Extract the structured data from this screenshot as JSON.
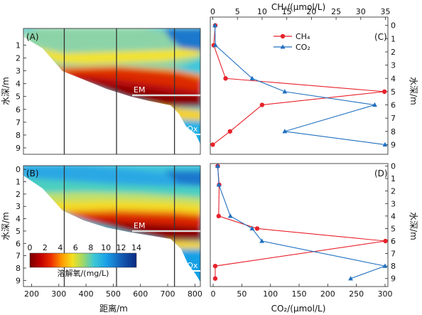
{
  "chart_data": [
    {
      "panel": "(A)",
      "type": "heatmap",
      "xlabel": "",
      "ylabel": "水深/m",
      "xlim": [
        170,
        820
      ],
      "ylim": [
        9.5,
        -0.3
      ],
      "yticks": [
        1,
        2,
        3,
        4,
        5,
        6,
        7,
        8,
        9
      ],
      "vertical_lines_x": [
        320,
        512,
        725
      ],
      "annotations": [
        "EM",
        "HOx"
      ],
      "bottom_profile": [
        [
          170,
          0.2
        ],
        [
          230,
          2.2
        ],
        [
          300,
          3.4
        ],
        [
          350,
          3.9
        ],
        [
          400,
          4.3
        ],
        [
          450,
          4.7
        ],
        [
          510,
          5.2
        ],
        [
          560,
          5.35
        ],
        [
          640,
          5.6
        ],
        [
          710,
          5.9
        ],
        [
          740,
          7.8
        ],
        [
          790,
          8.5
        ],
        [
          820,
          9.3
        ]
      ],
      "grid": false
    },
    {
      "panel": "(B)",
      "type": "heatmap",
      "xlabel": "距离/m",
      "ylabel": "水深/m",
      "xlim": [
        170,
        820
      ],
      "ylim": [
        9.5,
        -0.3
      ],
      "xticks": [
        200,
        300,
        400,
        500,
        600,
        700,
        800
      ],
      "yticks": [
        0,
        1,
        2,
        3,
        4,
        5,
        6,
        7,
        8,
        9
      ],
      "vertical_lines_x": [
        320,
        512,
        725
      ],
      "annotations": [
        "EM",
        "HOx"
      ],
      "colorbar": {
        "label": "溶解氧/(mg/L)",
        "ticks": [
          0,
          2,
          4,
          6,
          8,
          10,
          12,
          14
        ],
        "range": [
          0,
          14
        ]
      },
      "grid": false
    },
    {
      "panel": "(C)",
      "type": "line",
      "top_axis_label": "CH₄/(μmol/L)",
      "top_ticks": [
        0,
        5,
        10,
        15,
        20,
        25,
        30,
        35
      ],
      "top_range": [
        -0.5,
        35.5
      ],
      "ylabel": "水深/m",
      "yticks": [
        0,
        1,
        2,
        3,
        4,
        5,
        6,
        7,
        8,
        9
      ],
      "ylim": [
        9.3,
        -0.2
      ],
      "legend_position": "top-center",
      "series": [
        {
          "name": "CH₄",
          "axis": "top",
          "color": "#e8222b",
          "marker": "circle",
          "depth": [
            0,
            1.5,
            4,
            5,
            6,
            8,
            9
          ],
          "values": [
            0.5,
            0.2,
            2.6,
            34.8,
            10,
            3.5,
            0
          ]
        },
        {
          "name": "CO₂",
          "axis": "bottom",
          "color": "#2070c0",
          "marker": "triangle",
          "depth": [
            0,
            1.5,
            4,
            5,
            6,
            8,
            9
          ],
          "values": [
            3,
            4,
            68,
            125,
            282,
            125,
            300
          ]
        }
      ]
    },
    {
      "panel": "(D)",
      "type": "line",
      "bottom_axis_label": "CO₂/(μmol/L)",
      "bottom_ticks": [
        0,
        50,
        100,
        150,
        200,
        250,
        300
      ],
      "bottom_range": [
        -5,
        305
      ],
      "ylabel": "水深/m",
      "yticks": [
        0,
        1,
        2,
        3,
        4,
        5,
        6,
        7,
        8,
        9
      ],
      "ylim": [
        9.3,
        -0.2
      ],
      "series": [
        {
          "name": "CH₄",
          "axis": "top",
          "color": "#e8222b",
          "marker": "circle",
          "depth": [
            0,
            1.5,
            4,
            5,
            6,
            8,
            9
          ],
          "values": [
            1,
            1.3,
            1.2,
            9,
            35,
            0.5,
            0.5
          ]
        },
        {
          "name": "CO₂",
          "axis": "bottom",
          "color": "#2070c0",
          "marker": "triangle",
          "depth": [
            0,
            1.5,
            4,
            5,
            6,
            8,
            9
          ],
          "values": [
            8,
            10,
            30,
            68,
            85,
            300,
            240
          ]
        }
      ]
    }
  ]
}
